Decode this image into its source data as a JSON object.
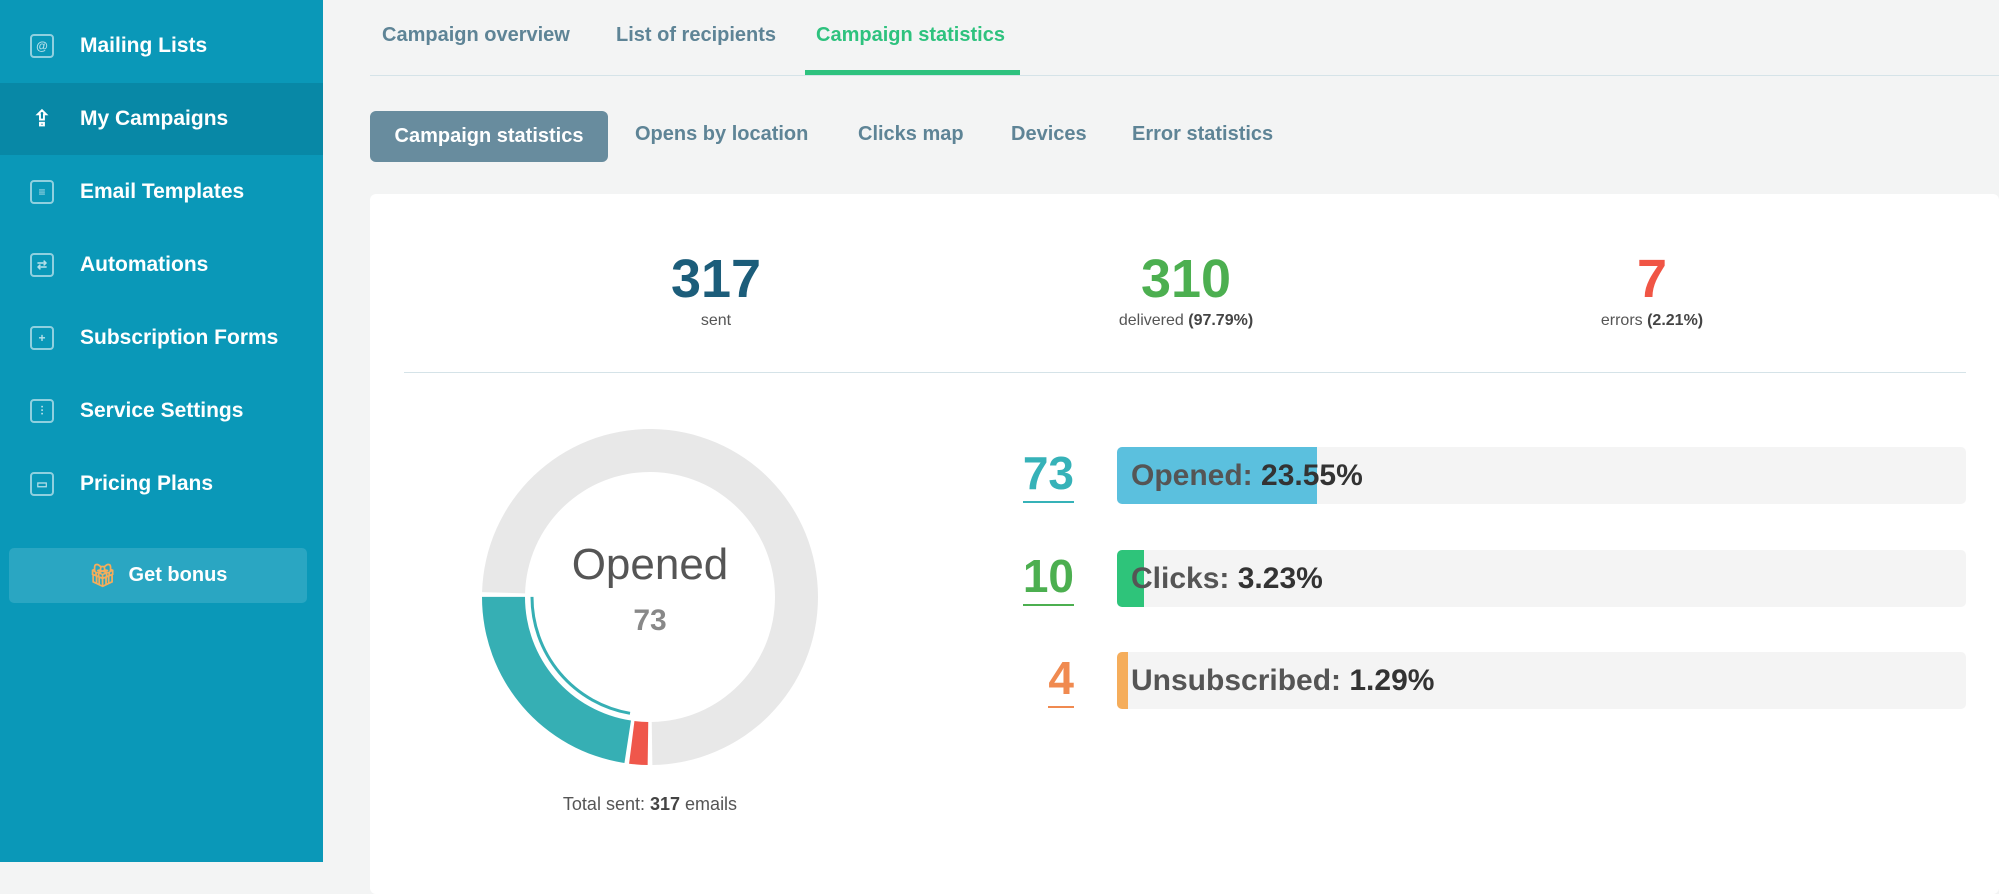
{
  "sidebar": {
    "items": [
      {
        "label": "Mailing Lists",
        "icon": "mailing-list-icon",
        "active": false
      },
      {
        "label": "My Campaigns",
        "icon": "upload-cloud-icon",
        "active": true
      },
      {
        "label": "Email Templates",
        "icon": "template-icon",
        "active": false
      },
      {
        "label": "Automations",
        "icon": "automation-icon",
        "active": false
      },
      {
        "label": "Subscription Forms",
        "icon": "form-icon",
        "active": false
      },
      {
        "label": "Service Settings",
        "icon": "sliders-icon",
        "active": false
      },
      {
        "label": "Pricing Plans",
        "icon": "wallet-icon",
        "active": false
      }
    ],
    "bonus_label": "Get bonus"
  },
  "tabs": [
    "Campaign overview",
    "List of recipients",
    "Campaign statistics"
  ],
  "active_tab": "Campaign statistics",
  "subtabs": [
    "Campaign statistics",
    "Opens by location",
    "Clicks map",
    "Devices",
    "Error statistics"
  ],
  "stats": {
    "sent": {
      "value": "317",
      "label": "sent",
      "color": "#1c5d7a"
    },
    "delivered": {
      "value": "310",
      "label": "delivered",
      "pct": "(97.79%)",
      "color": "#4caf50"
    },
    "errors": {
      "value": "7",
      "label": "errors",
      "pct": "(2.21%)",
      "color": "#f05545"
    }
  },
  "chart_data": {
    "type": "pie",
    "title": "Opened",
    "center_value": "73",
    "segments": [
      {
        "value": 7,
        "color": "#ef574b"
      },
      {
        "value": 73,
        "color": "#36afb4"
      },
      {
        "value": 237,
        "color": "#e8e8e8"
      }
    ],
    "total_prefix": "Total sent:",
    "total": "317",
    "total_suffix": "emails"
  },
  "rates": [
    {
      "count": "73",
      "label": "Opened:",
      "pct": "23.55%",
      "value": 23.55,
      "color": "#5bc0de",
      "num_color": "#36b2b8"
    },
    {
      "count": "10",
      "label": "Clicks:",
      "pct": "3.23%",
      "value": 3.23,
      "color": "#2ec47a",
      "num_color": "#4caf50"
    },
    {
      "count": "4",
      "label": "Unsubscribed:",
      "pct": "1.29%",
      "value": 1.29,
      "color": "#f5ad5b",
      "num_color": "#f08a50"
    }
  ]
}
